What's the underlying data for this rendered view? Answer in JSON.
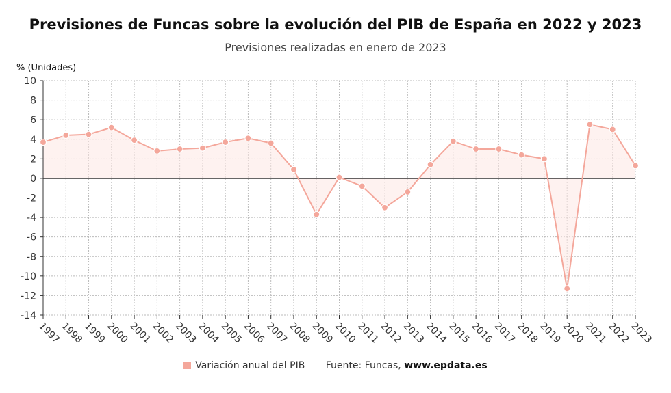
{
  "title": "Previsiones de Funcas sobre la evolución del PIB de España en 2022 y 2023",
  "subtitle": "Previsiones realizadas en enero de 2023",
  "legend": {
    "series_label": "Variación anual del PIB",
    "source_label": "Fuente: Funcas,",
    "site": "www.epdata.es"
  },
  "colors": {
    "line": "#f4a79b",
    "marker": "#f4a79b",
    "fill": "#fde7e3",
    "zero_line": "#333333",
    "grid": "#bbbbbb"
  },
  "chart_data": {
    "type": "line",
    "ylabel": "% (Unidades)",
    "ylim": [
      -14,
      10
    ],
    "yticks": [
      10,
      8,
      6,
      4,
      2,
      0,
      -2,
      -4,
      -6,
      -8,
      -10,
      -12,
      -14
    ],
    "grid": true,
    "legend_position": "bottom",
    "x": [
      "1997",
      "1998",
      "1999",
      "2000",
      "2001",
      "2002",
      "2003",
      "2004",
      "2005",
      "2006",
      "2007",
      "2008",
      "2009",
      "2010",
      "2011",
      "2012",
      "2013",
      "2014",
      "2015",
      "2016",
      "2017",
      "2018",
      "2019",
      "2020",
      "2021",
      "2022",
      "2023"
    ],
    "series": [
      {
        "name": "Variación anual del PIB",
        "values": [
          3.7,
          4.4,
          4.5,
          5.2,
          3.9,
          2.8,
          3.0,
          3.1,
          3.7,
          4.1,
          3.6,
          0.9,
          -3.7,
          0.1,
          -0.8,
          -3.0,
          -1.4,
          1.4,
          3.8,
          3.0,
          3.0,
          2.4,
          2.0,
          -11.3,
          5.5,
          5.0,
          1.3
        ]
      }
    ]
  }
}
